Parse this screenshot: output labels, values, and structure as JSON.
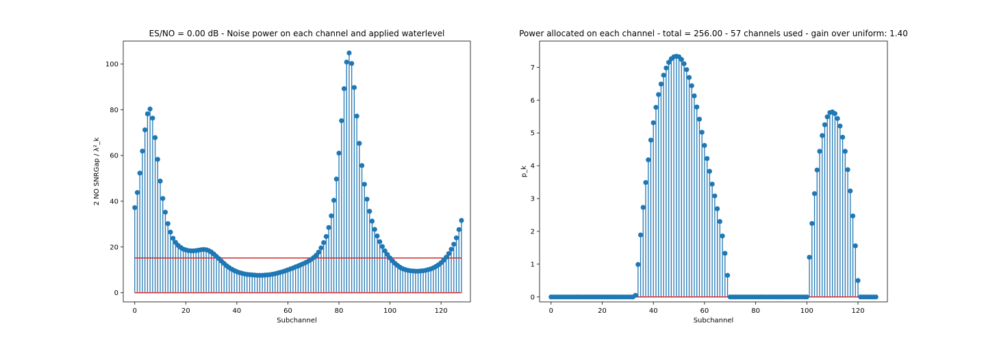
{
  "chart_data": [
    {
      "type": "stem",
      "title": "ES/NO = 0.00 dB - Noise power on each channel and applied waterlevel",
      "xlabel": "Subchannel",
      "ylabel": "2 NO SNRGap / λ²_k",
      "xlim": [
        -4.5,
        131.5
      ],
      "ylim": [
        -4,
        110
      ],
      "xticks": [
        0,
        20,
        40,
        60,
        80,
        100,
        120
      ],
      "yticks": [
        0,
        20,
        40,
        60,
        80,
        100
      ],
      "waterlevel": 15.2,
      "baseline": 0,
      "x_start": 0,
      "values": [
        37.2,
        43.8,
        52.3,
        61.9,
        71.2,
        78.2,
        80.3,
        76.3,
        67.8,
        58.3,
        48.8,
        41.2,
        35.2,
        30.2,
        26.5,
        23.8,
        22.0,
        20.7,
        19.8,
        19.1,
        18.7,
        18.4,
        18.3,
        18.3,
        18.4,
        18.6,
        18.8,
        18.9,
        18.8,
        18.4,
        17.8,
        16.9,
        15.9,
        14.9,
        13.8,
        12.8,
        11.8,
        11.0,
        10.3,
        9.7,
        9.2,
        8.8,
        8.5,
        8.2,
        8.0,
        7.9,
        7.8,
        7.7,
        7.6,
        7.6,
        7.6,
        7.7,
        7.8,
        7.9,
        8.1,
        8.3,
        8.6,
        8.9,
        9.2,
        9.6,
        10.0,
        10.4,
        10.8,
        11.3,
        11.7,
        12.2,
        12.7,
        13.2,
        13.8,
        14.5,
        15.3,
        16.3,
        17.7,
        19.6,
        21.9,
        24.6,
        28.5,
        33.6,
        40.4,
        49.7,
        61.0,
        75.2,
        89.2,
        100.8,
        104.8,
        100.2,
        89.7,
        77.2,
        65.3,
        55.6,
        47.4,
        40.9,
        35.6,
        31.3,
        27.7,
        24.8,
        22.3,
        20.2,
        18.3,
        16.7,
        15.2,
        13.9,
        12.8,
        11.9,
        11.1,
        10.5,
        10.1,
        9.8,
        9.6,
        9.5,
        9.4,
        9.4,
        9.5,
        9.6,
        9.8,
        10.1,
        10.4,
        10.9,
        11.5,
        12.2,
        13.1,
        14.2,
        15.5,
        17.1,
        19.0,
        21.2,
        24.0,
        27.6,
        31.6
      ]
    },
    {
      "type": "stem",
      "title": "Power allocated on each channel - total = 256.00 - 57 channels used - gain over uniform: 1.40",
      "xlabel": "Subchannel",
      "ylabel": "p_k",
      "xlim": [
        -4.5,
        131.5
      ],
      "ylim": [
        -0.15,
        7.8
      ],
      "xticks": [
        0,
        20,
        40,
        60,
        80,
        100,
        120
      ],
      "yticks": [
        0,
        1,
        2,
        3,
        4,
        5,
        6,
        7
      ],
      "baseline": 0,
      "x_start": 0,
      "values": [
        0,
        0,
        0,
        0,
        0,
        0,
        0,
        0,
        0,
        0,
        0,
        0,
        0,
        0,
        0,
        0,
        0,
        0,
        0,
        0,
        0,
        0,
        0,
        0,
        0,
        0,
        0,
        0,
        0,
        0,
        0,
        0,
        0,
        0.05,
        0.99,
        1.89,
        2.73,
        3.49,
        4.18,
        4.78,
        5.31,
        5.78,
        6.17,
        6.49,
        6.76,
        6.98,
        7.15,
        7.26,
        7.32,
        7.34,
        7.32,
        7.24,
        7.11,
        6.93,
        6.69,
        6.44,
        6.13,
        5.79,
        5.42,
        5.02,
        4.62,
        4.22,
        3.83,
        3.44,
        3.08,
        2.69,
        2.3,
        1.86,
        1.33,
        0.66,
        0,
        0,
        0,
        0,
        0,
        0,
        0,
        0,
        0,
        0,
        0,
        0,
        0,
        0,
        0,
        0,
        0,
        0,
        0,
        0,
        0,
        0,
        0,
        0,
        0,
        0,
        0,
        0,
        0,
        0,
        0,
        1.21,
        2.24,
        3.15,
        3.87,
        4.44,
        4.92,
        5.25,
        5.49,
        5.62,
        5.64,
        5.59,
        5.44,
        5.21,
        4.87,
        4.44,
        3.88,
        3.23,
        2.47,
        1.56,
        0.5,
        0,
        0,
        0,
        0,
        0,
        0,
        0
      ]
    }
  ]
}
